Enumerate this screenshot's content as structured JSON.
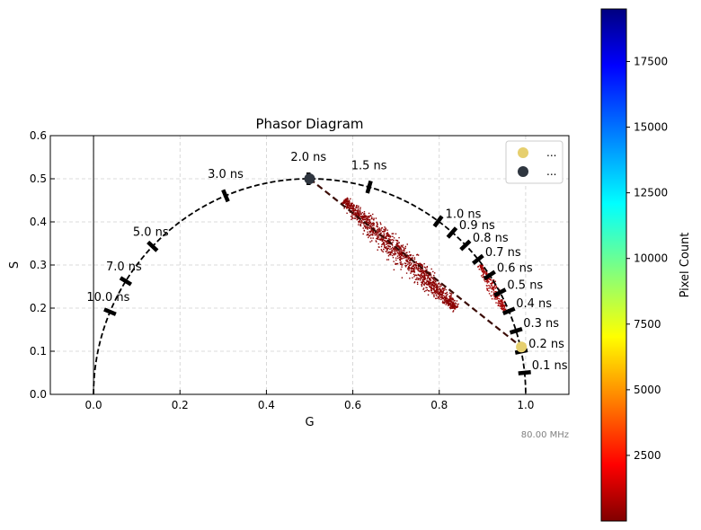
{
  "chart_data": {
    "type": "scatter",
    "title": "Phasor Diagram",
    "xlabel": "G",
    "ylabel": "S",
    "xlim": [
      -0.1,
      1.1
    ],
    "ylim": [
      0.0,
      0.6
    ],
    "xticks": [
      0.0,
      0.2,
      0.4,
      0.6,
      0.8,
      1.0
    ],
    "xtick_labels": [
      "0.0",
      "0.2",
      "0.4",
      "0.6",
      "0.8",
      "1.0"
    ],
    "yticks": [
      0.0,
      0.1,
      0.2,
      0.3,
      0.4,
      0.5,
      0.6
    ],
    "ytick_labels": [
      "0.0",
      "0.1",
      "0.2",
      "0.3",
      "0.4",
      "0.5",
      "0.6"
    ],
    "grid": true,
    "frequency_label": "80.00 MHz",
    "universal_circle": {
      "center": [
        0.5,
        0.0
      ],
      "radius": 0.5
    },
    "lifetime_markers": [
      {
        "label": "0.1 ns",
        "g": 0.9975,
        "s": 0.0501
      },
      {
        "label": "0.2 ns",
        "g": 0.99,
        "s": 0.0995
      },
      {
        "label": "0.3 ns",
        "g": 0.9778,
        "s": 0.1474
      },
      {
        "label": "0.4 ns",
        "g": 0.9612,
        "s": 0.1933
      },
      {
        "label": "0.5 ns",
        "g": 0.9407,
        "s": 0.2364
      },
      {
        "label": "0.6 ns",
        "g": 0.9166,
        "s": 0.2763
      },
      {
        "label": "0.7 ns",
        "g": 0.8897,
        "s": 0.3128
      },
      {
        "label": "0.8 ns",
        "g": 0.8605,
        "s": 0.3457
      },
      {
        "label": "0.9 ns",
        "g": 0.8295,
        "s": 0.3751
      },
      {
        "label": "1.0 ns",
        "g": 0.7975,
        "s": 0.4013
      },
      {
        "label": "1.5 ns",
        "g": 0.6376,
        "s": 0.4807
      },
      {
        "label": "2.0 ns",
        "g": 0.4975,
        "s": 0.5
      },
      {
        "label": "3.0 ns",
        "g": 0.3055,
        "s": 0.4607
      },
      {
        "label": "5.0 ns",
        "g": 0.1366,
        "s": 0.3432
      },
      {
        "label": "7.0 ns",
        "g": 0.0745,
        "s": 0.2626
      },
      {
        "label": "10.0 ns",
        "g": 0.0381,
        "s": 0.1914
      }
    ],
    "connecting_line": {
      "from": [
        0.5,
        0.5
      ],
      "to": [
        0.99,
        0.11
      ]
    },
    "points": [
      {
        "name": "...",
        "g": 0.99,
        "s": 0.11,
        "color": "#e6cf6e"
      },
      {
        "name": "...",
        "g": 0.5,
        "s": 0.5,
        "color": "#2f3640"
      }
    ],
    "pixel_clusters": [
      {
        "g_range": [
          0.57,
          0.86
        ],
        "center_line": {
          "from": [
            0.58,
            0.45
          ],
          "to": [
            0.84,
            0.2
          ]
        },
        "color": "#8b0000"
      },
      {
        "g_range": [
          0.89,
          0.96
        ],
        "center_line": {
          "from": [
            0.895,
            0.3
          ],
          "to": [
            0.955,
            0.19
          ]
        },
        "color": "#a30000"
      }
    ],
    "colorbar": {
      "label": "Pixel Count",
      "min": 1,
      "max": 19500,
      "ticks": [
        2500,
        5000,
        7500,
        10000,
        12500,
        15000,
        17500
      ],
      "colormap": "jet_r"
    }
  }
}
